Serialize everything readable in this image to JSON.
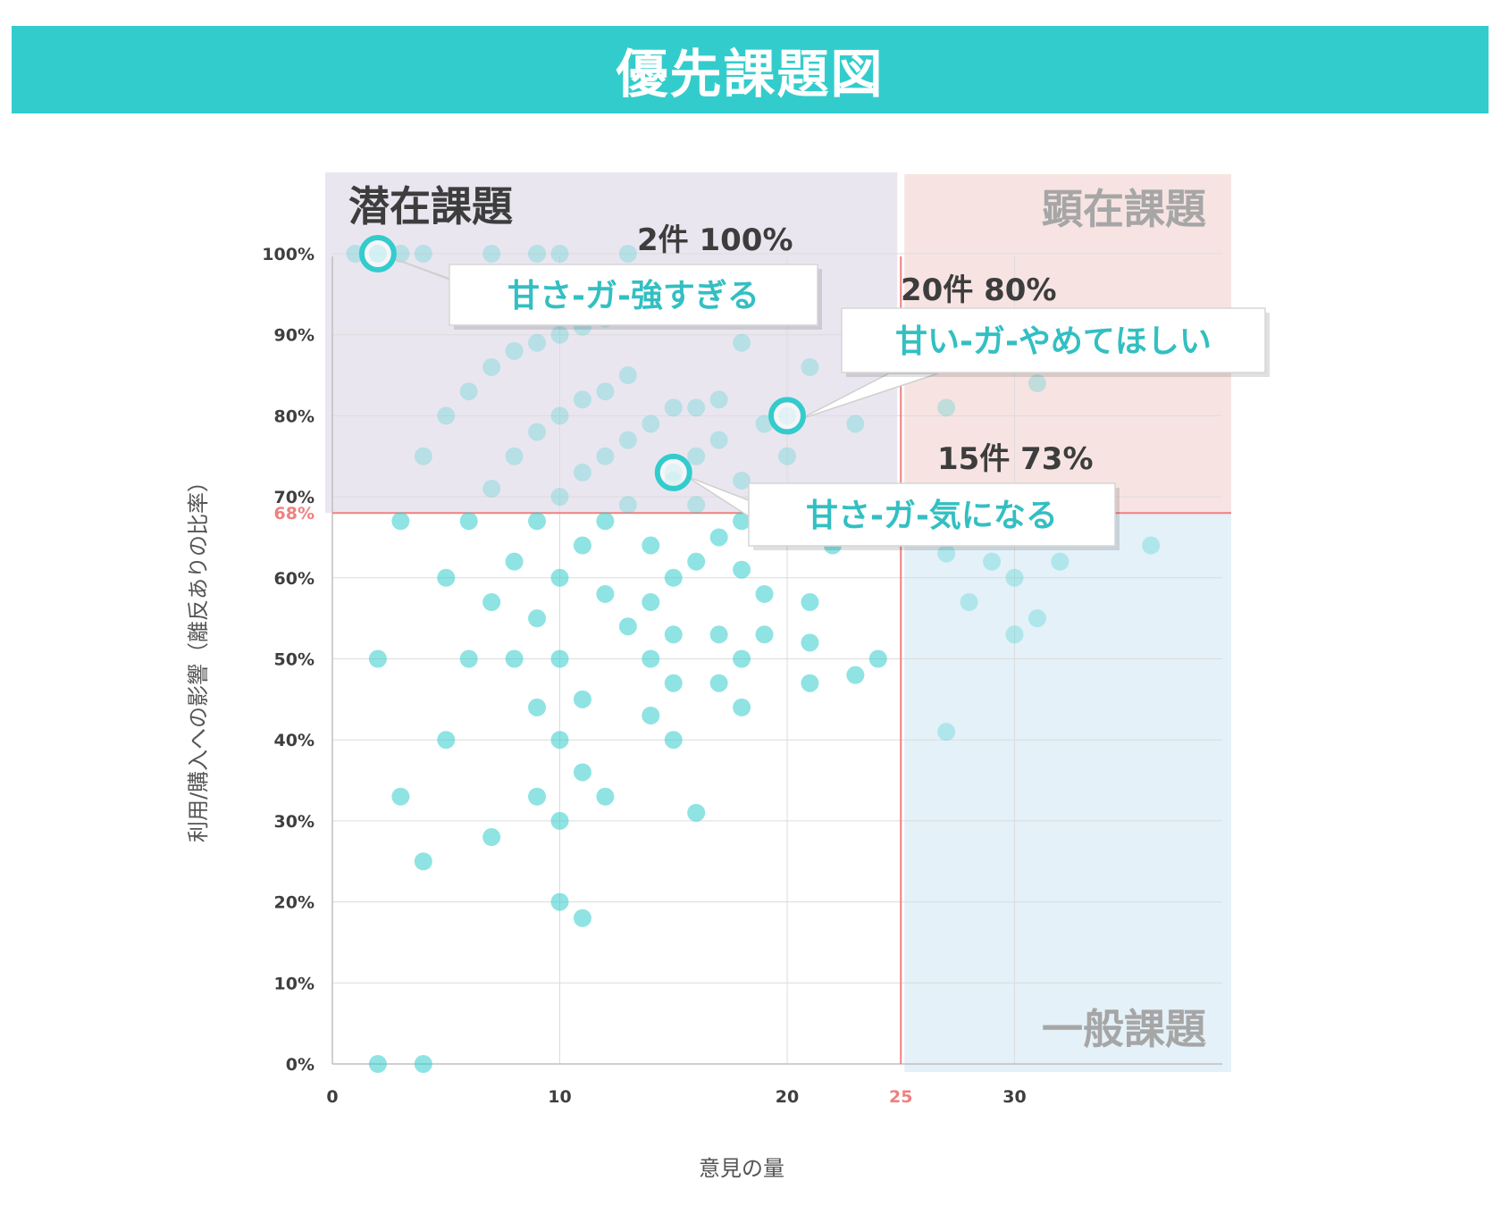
{
  "header": {
    "title": "優先課題図"
  },
  "colors": {
    "header_bg": "#33CCCC",
    "accent": "#33CCCC",
    "threshold_line": "#F08080",
    "latent_bg": "#EAE6F0",
    "manifest_bg": "#F7E4E2",
    "general_bg": "#E4F1F8",
    "point": "#33CCCC",
    "quad_latent_text": "#3d3d3d",
    "quad_other_text": "#A6A6A6",
    "callout_text": "#33BFC2"
  },
  "chart_data": {
    "type": "scatter",
    "title": "",
    "xlabel": "意見の量",
    "ylabel": "利用/購入への影響（離反ありの比率）",
    "xlim": [
      0,
      39
    ],
    "ylim": [
      0,
      100
    ],
    "x_ticks": [
      {
        "value": 0,
        "label": "0"
      },
      {
        "value": 10,
        "label": "10"
      },
      {
        "value": 20,
        "label": "20"
      },
      {
        "value": 25,
        "label": "25"
      },
      {
        "value": 30,
        "label": "30"
      }
    ],
    "y_ticks": [
      {
        "value": 0,
        "label": "0%"
      },
      {
        "value": 10,
        "label": "10%"
      },
      {
        "value": 20,
        "label": "20%"
      },
      {
        "value": 30,
        "label": "30%"
      },
      {
        "value": 40,
        "label": "40%"
      },
      {
        "value": 50,
        "label": "50%"
      },
      {
        "value": 60,
        "label": "60%"
      },
      {
        "value": 68,
        "label": "68%"
      },
      {
        "value": 70,
        "label": "70%"
      },
      {
        "value": 80,
        "label": "80%"
      },
      {
        "value": 90,
        "label": "90%"
      },
      {
        "value": 100,
        "label": "100%"
      }
    ],
    "grid": true,
    "thresholds": {
      "x": 25,
      "y": 68
    },
    "quadrants": {
      "latent": "潜在課題",
      "manifest": "顕在課題",
      "general": "一般課題"
    },
    "series": [
      {
        "points": [
          [
            1,
            100
          ],
          [
            2,
            100
          ],
          [
            3,
            100
          ],
          [
            4,
            100
          ],
          [
            7,
            100
          ],
          [
            9,
            100
          ],
          [
            10,
            100
          ],
          [
            13,
            100
          ],
          [
            5,
            80
          ],
          [
            6,
            83
          ],
          [
            7,
            86
          ],
          [
            8,
            88
          ],
          [
            9,
            89
          ],
          [
            10,
            90
          ],
          [
            11,
            91
          ],
          [
            12,
            92
          ],
          [
            4,
            75
          ],
          [
            7,
            71
          ],
          [
            8,
            75
          ],
          [
            9,
            78
          ],
          [
            10,
            80
          ],
          [
            11,
            82
          ],
          [
            12,
            83
          ],
          [
            13,
            85
          ],
          [
            10,
            70
          ],
          [
            11,
            73
          ],
          [
            12,
            75
          ],
          [
            13,
            77
          ],
          [
            14,
            79
          ],
          [
            15,
            81
          ],
          [
            16,
            81
          ],
          [
            17,
            82
          ],
          [
            13,
            69
          ],
          [
            15,
            72
          ],
          [
            16,
            69
          ],
          [
            16,
            75
          ],
          [
            17,
            77
          ],
          [
            18,
            72
          ],
          [
            19,
            79
          ],
          [
            20,
            75
          ],
          [
            18,
            89
          ],
          [
            21,
            86
          ],
          [
            23,
            79
          ],
          [
            27,
            81
          ],
          [
            31,
            84
          ],
          [
            15,
            73
          ],
          [
            20,
            80
          ],
          [
            2,
            100
          ],
          [
            3,
            67
          ],
          [
            6,
            67
          ],
          [
            9,
            67
          ],
          [
            12,
            67
          ],
          [
            18,
            67
          ],
          [
            11,
            64
          ],
          [
            14,
            64
          ],
          [
            16,
            62
          ],
          [
            17,
            65
          ],
          [
            8,
            62
          ],
          [
            5,
            60
          ],
          [
            10,
            60
          ],
          [
            15,
            60
          ],
          [
            18,
            61
          ],
          [
            22,
            64
          ],
          [
            27,
            63
          ],
          [
            29,
            62
          ],
          [
            30,
            60
          ],
          [
            32,
            62
          ],
          [
            36,
            64
          ],
          [
            7,
            57
          ],
          [
            9,
            55
          ],
          [
            12,
            58
          ],
          [
            14,
            57
          ],
          [
            19,
            58
          ],
          [
            21,
            57
          ],
          [
            13,
            54
          ],
          [
            15,
            53
          ],
          [
            17,
            53
          ],
          [
            19,
            53
          ],
          [
            21,
            52
          ],
          [
            28,
            57
          ],
          [
            31,
            55
          ],
          [
            30,
            53
          ],
          [
            2,
            50
          ],
          [
            6,
            50
          ],
          [
            8,
            50
          ],
          [
            10,
            50
          ],
          [
            14,
            50
          ],
          [
            18,
            50
          ],
          [
            24,
            50
          ],
          [
            21,
            47
          ],
          [
            23,
            48
          ],
          [
            15,
            47
          ],
          [
            17,
            47
          ],
          [
            9,
            44
          ],
          [
            11,
            45
          ],
          [
            14,
            43
          ],
          [
            18,
            44
          ],
          [
            5,
            40
          ],
          [
            10,
            40
          ],
          [
            15,
            40
          ],
          [
            27,
            41
          ],
          [
            3,
            33
          ],
          [
            9,
            33
          ],
          [
            12,
            33
          ],
          [
            11,
            36
          ],
          [
            7,
            28
          ],
          [
            10,
            30
          ],
          [
            16,
            31
          ],
          [
            4,
            25
          ],
          [
            10,
            20
          ],
          [
            11,
            18
          ],
          [
            2,
            0
          ],
          [
            4,
            0
          ]
        ]
      }
    ],
    "annotations": [
      {
        "label": "甘さ-ガ-強すぎる",
        "count_text": "2件 100%",
        "x": 2,
        "y": 100
      },
      {
        "label": "甘い-ガ-やめてほしい",
        "count_text": "20件 80%",
        "x": 20,
        "y": 80
      },
      {
        "label": "甘さ-ガ-気になる",
        "count_text": "15件 73%",
        "x": 15,
        "y": 73
      }
    ]
  }
}
